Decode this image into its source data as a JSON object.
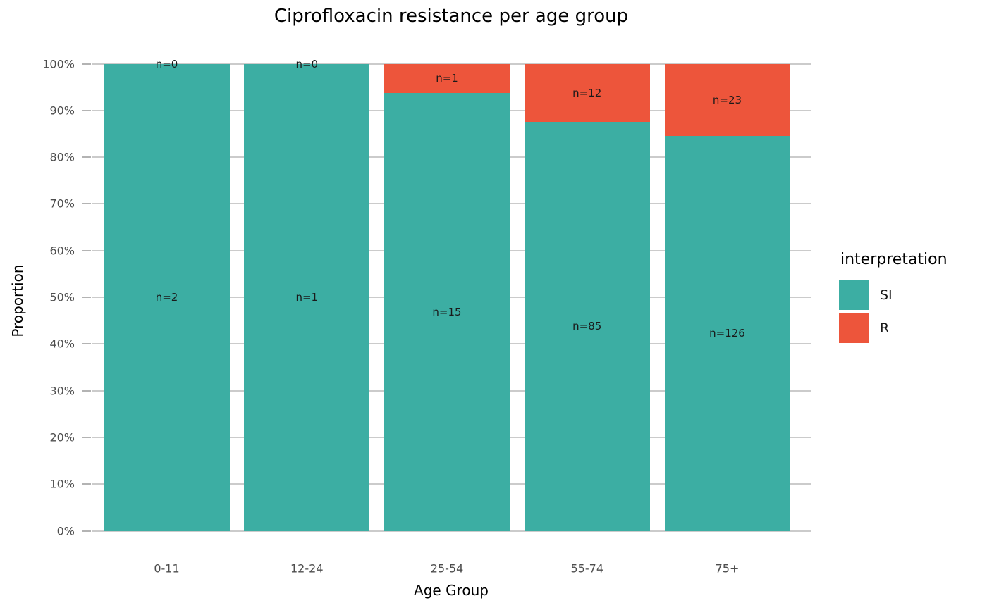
{
  "title": "Ciprofloxacin resistance per age group",
  "chart_data": {
    "type": "bar",
    "variant": "stacked-100-percent",
    "title": "Ciprofloxacin resistance per age group",
    "xlabel": "Age Group",
    "ylabel": "Proportion",
    "categories": [
      "0-11",
      "12-24",
      "25-54",
      "55-74",
      "75+"
    ],
    "series": [
      {
        "name": "SI",
        "color": "#3CAEA3",
        "counts": [
          2,
          1,
          15,
          85,
          126
        ]
      },
      {
        "name": "R",
        "color": "#ED553B",
        "counts": [
          0,
          0,
          1,
          12,
          23
        ]
      }
    ],
    "segment_labels": {
      "SI": [
        "n=2",
        "n=1",
        "n=15",
        "n=85",
        "n=126"
      ],
      "R": [
        "n=0",
        "n=0",
        "n=1",
        "n=12",
        "n=23"
      ]
    },
    "y_ticks": [
      "0%",
      "10%",
      "20%",
      "30%",
      "40%",
      "50%",
      "60%",
      "70%",
      "80%",
      "90%",
      "100%"
    ],
    "ylim": [
      0,
      100
    ],
    "grid": "horizontal-major-only",
    "legend": {
      "title": "interpretation",
      "position": "right",
      "entries": [
        {
          "label": "SI",
          "color": "#3CAEA3"
        },
        {
          "label": "R",
          "color": "#ED553B"
        }
      ]
    }
  },
  "colors": {
    "si": "#3CAEA3",
    "r": "#ED553B",
    "gridline": "#CBCBCB",
    "tick_mark": "#B3B3B3",
    "axis_text": "#4D4D4D",
    "bar_label_text": "#1A1A1A",
    "background": "#FFFFFF"
  }
}
